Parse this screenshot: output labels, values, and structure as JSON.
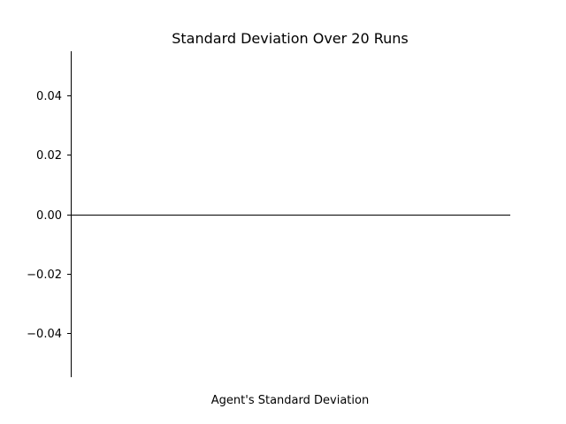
{
  "chart_data": {
    "type": "bar",
    "title": "Standard Deviation Over 20 Runs",
    "xlabel": "Agent's Standard Deviation",
    "ylabel": "",
    "categories": [
      ""
    ],
    "values": [
      0.0
    ],
    "ylim": [
      -0.055,
      0.055
    ],
    "yticks": [
      -0.04,
      -0.02,
      0.0,
      0.02,
      0.04
    ],
    "ytick_labels": [
      "−0.04",
      "−0.02",
      "0.00",
      "0.02",
      "0.04"
    ],
    "grid": false,
    "legend": "none",
    "colors": {
      "axis": "#000000",
      "zero_line": "#000000",
      "background": "#ffffff"
    }
  }
}
